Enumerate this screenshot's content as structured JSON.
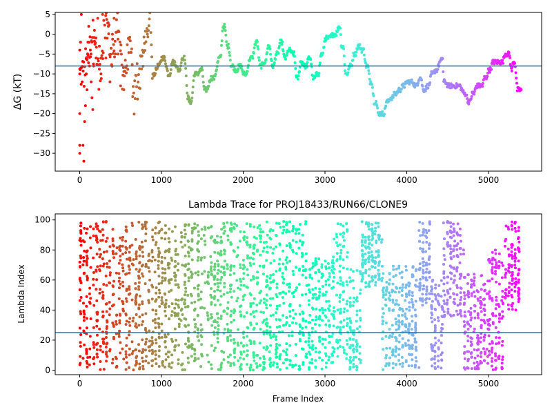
{
  "chart_data": [
    {
      "type": "scatter",
      "title": "",
      "xlabel": "",
      "ylabel": "ΔG (kT)",
      "xlim": [
        -300,
        5650
      ],
      "ylim": [
        -34.5,
        5.5
      ],
      "xticks": [
        0,
        1000,
        2000,
        3000,
        4000,
        5000
      ],
      "yticks": [
        5,
        0,
        -5,
        -10,
        -15,
        -20,
        -25,
        -30
      ],
      "grid": false,
      "colormap": "rainbow",
      "color_by": "frame index",
      "reference_line": {
        "y": -8,
        "color": "#1f77b4"
      },
      "trace_keypoints": {
        "x": [
          40,
          80,
          150,
          220,
          300,
          380,
          450,
          520,
          600,
          650,
          700,
          760,
          820,
          850,
          880,
          950,
          1000,
          1080,
          1130,
          1200,
          1250,
          1320,
          1340,
          1400,
          1480,
          1520,
          1600,
          1700,
          1750,
          1800,
          1850,
          1900,
          1950,
          2000,
          2080,
          2150,
          2200,
          2250,
          2300,
          2350,
          2400,
          2450,
          2500,
          2550,
          2600,
          2650,
          2700,
          2750,
          2800,
          2850,
          2900,
          2950,
          3000,
          3100,
          3170,
          3200,
          3250,
          3300,
          3350,
          3400,
          3450,
          3500,
          3550,
          3600,
          3650,
          3700,
          3750,
          3800,
          3850,
          3900,
          3950,
          4000,
          4050,
          4100,
          4150,
          4200,
          4250,
          4300,
          4350,
          4400,
          4430,
          4450,
          4500,
          4600,
          4700,
          4750,
          4800,
          4850,
          4900,
          4950,
          5000,
          5050,
          5100,
          5150,
          5200,
          5230,
          5280,
          5300,
          5350,
          5400
        ],
        "y": [
          -10,
          -5,
          0,
          -10,
          3,
          -5,
          2,
          -10,
          -3,
          -15,
          -10,
          -5,
          0,
          3,
          -10,
          -8,
          -6,
          -10,
          -7,
          -9,
          -6,
          -16,
          -17,
          -10,
          -9,
          -14,
          -11,
          -6,
          2,
          -3,
          -8,
          -9,
          -8,
          -10,
          -6,
          -2,
          -8,
          -7,
          -3,
          -8,
          -5,
          -2,
          -6,
          -4,
          -5,
          -11,
          -7,
          -8,
          -6,
          -11,
          -10,
          -5,
          -1,
          0,
          2,
          -3,
          -10,
          -8,
          -5,
          -3,
          -4,
          -8,
          -12,
          -17,
          -20,
          -20,
          -17,
          -16,
          -15,
          -14,
          -13,
          -12,
          -12,
          -13,
          -11,
          -14,
          -13,
          -10,
          -9,
          -7,
          -6,
          -12,
          -13,
          -13,
          -15,
          -17,
          -15,
          -13,
          -13,
          -11,
          -9,
          -7,
          -7,
          -7,
          -5,
          -5,
          -9,
          -7,
          -14,
          -14
        ]
      }
    },
    {
      "type": "scatter",
      "title": "Lambda Trace for PROJ18433/RUN66/CLONE9",
      "xlabel": "Frame Index",
      "ylabel": "Lambda Index",
      "xlim": [
        -300,
        5650
      ],
      "ylim": [
        -3,
        104
      ],
      "xticks": [
        0,
        1000,
        2000,
        3000,
        4000,
        5000
      ],
      "yticks": [
        0,
        20,
        40,
        60,
        80,
        100
      ],
      "grid": false,
      "colormap": "rainbow",
      "color_by": "frame index",
      "reference_line": {
        "y": 25,
        "color": "#1f77b4"
      },
      "range": {
        "min": 0,
        "max": 99
      }
    }
  ]
}
